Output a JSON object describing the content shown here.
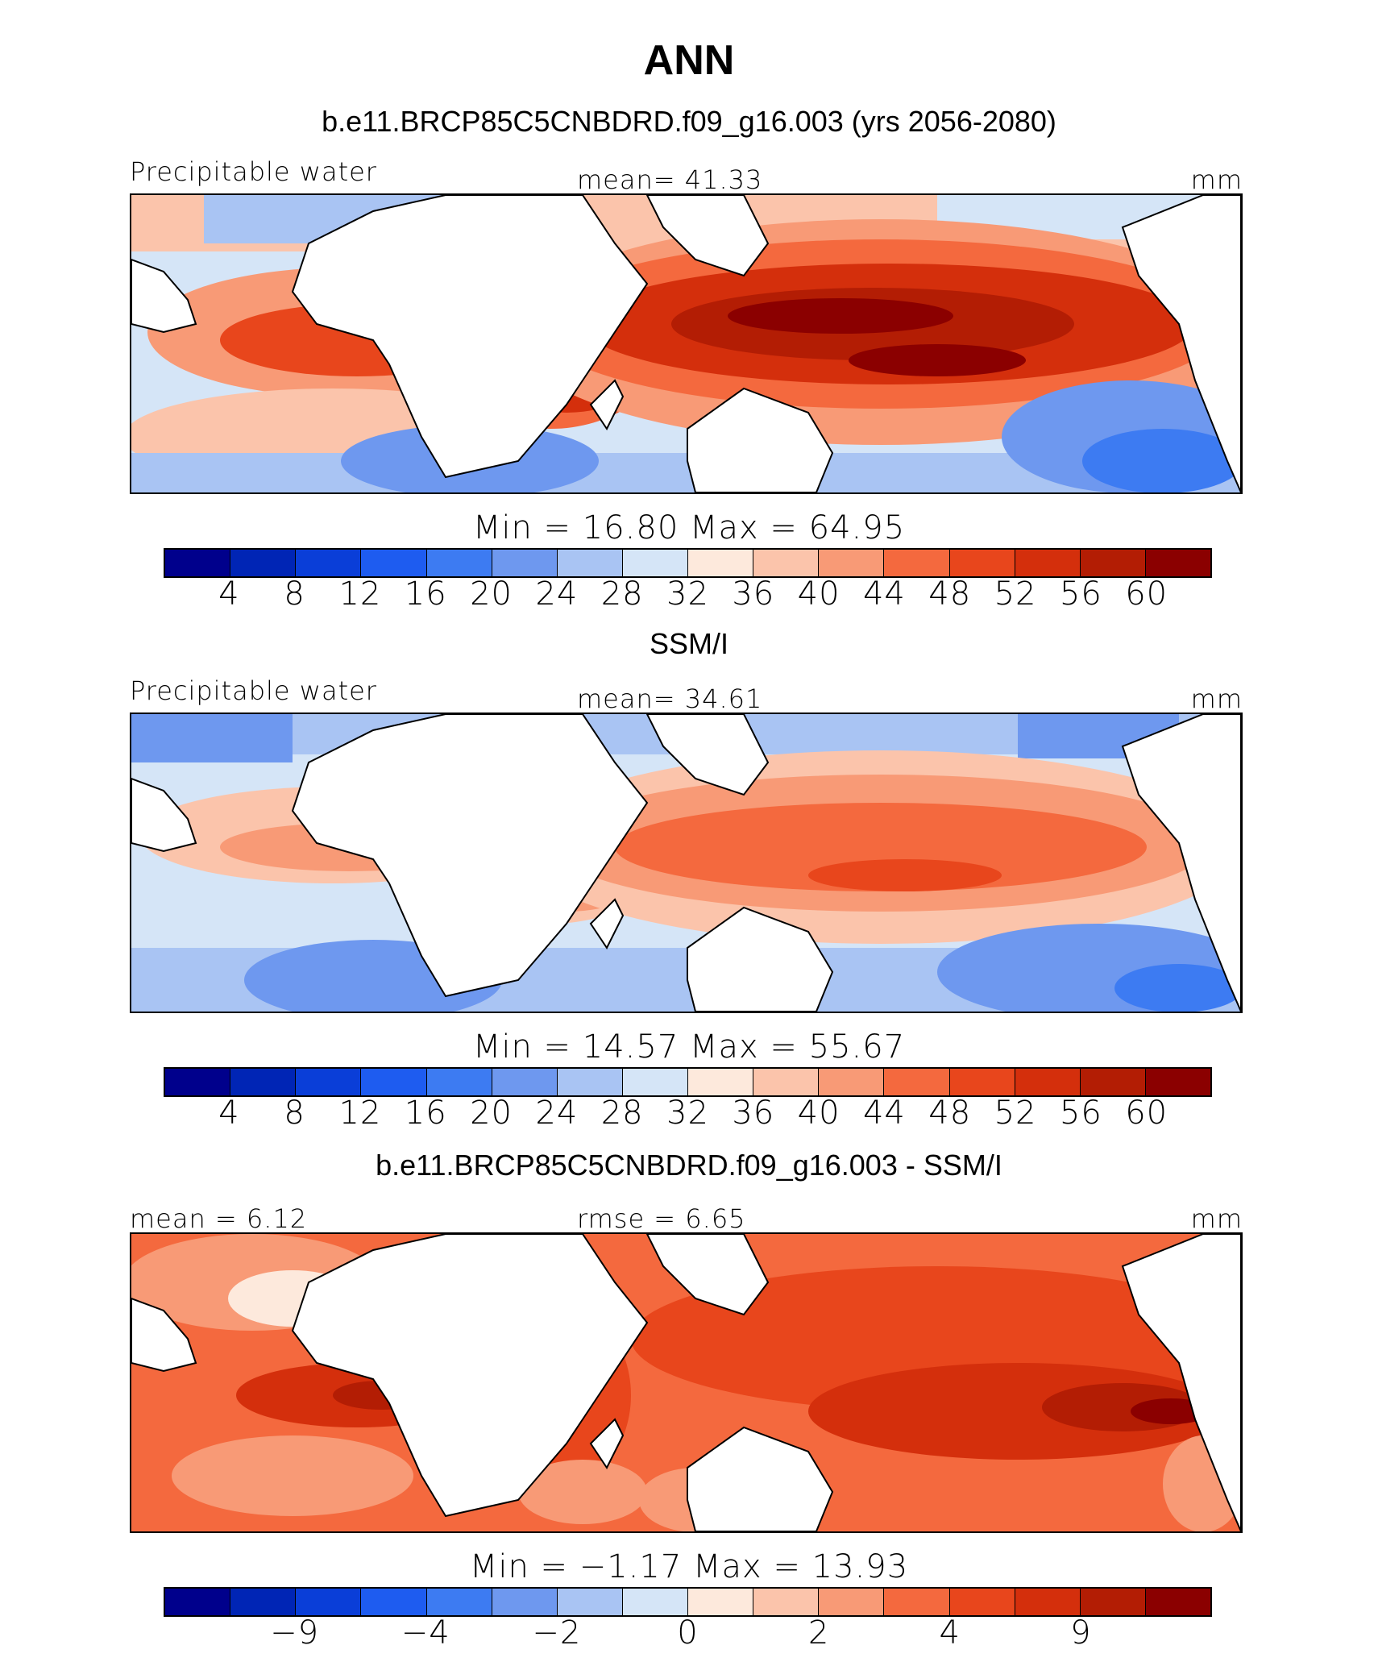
{
  "page_title": "ANN",
  "panels": [
    {
      "subtitle": "b.e11.BRCP85C5CNBDRD.f09_g16.003 (yrs 2056-2080)",
      "left_label": "Precipitable water",
      "center_label": "mean=  41.33",
      "right_label": "mm",
      "range_label": "Min =   16.80  Max =   64.95",
      "colorbar_ticks": [
        "4",
        "8",
        "12",
        "16",
        "20",
        "24",
        "28",
        "32",
        "36",
        "40",
        "44",
        "48",
        "52",
        "56",
        "60"
      ]
    },
    {
      "subtitle": "SSM/I",
      "left_label": "Precipitable water",
      "center_label": "mean=  34.61",
      "right_label": "mm",
      "range_label": "Min =   14.57  Max =   55.67",
      "colorbar_ticks": [
        "4",
        "8",
        "12",
        "16",
        "20",
        "24",
        "28",
        "32",
        "36",
        "40",
        "44",
        "48",
        "52",
        "56",
        "60"
      ]
    },
    {
      "subtitle": "b.e11.BRCP85C5CNBDRD.f09_g16.003 - SSM/I",
      "left_label": "mean =    6.12",
      "center_label": "rmse =    6.65",
      "right_label": "mm",
      "range_label": "Min =   −1.17  Max =   13.93",
      "colorbar_ticks": [
        "−9",
        "−4",
        "−2",
        "0",
        "2",
        "4",
        "9"
      ]
    }
  ],
  "colorbar_colors": [
    "#00008c",
    "#0025b5",
    "#0a3ed8",
    "#1e5cf0",
    "#3d7bf2",
    "#6e98ef",
    "#a9c4f3",
    "#d5e5f7",
    "#fde9dc",
    "#fbc4ab",
    "#f89a76",
    "#f4693e",
    "#e8461c",
    "#d42f0c",
    "#b31d04",
    "#8b0000"
  ]
}
